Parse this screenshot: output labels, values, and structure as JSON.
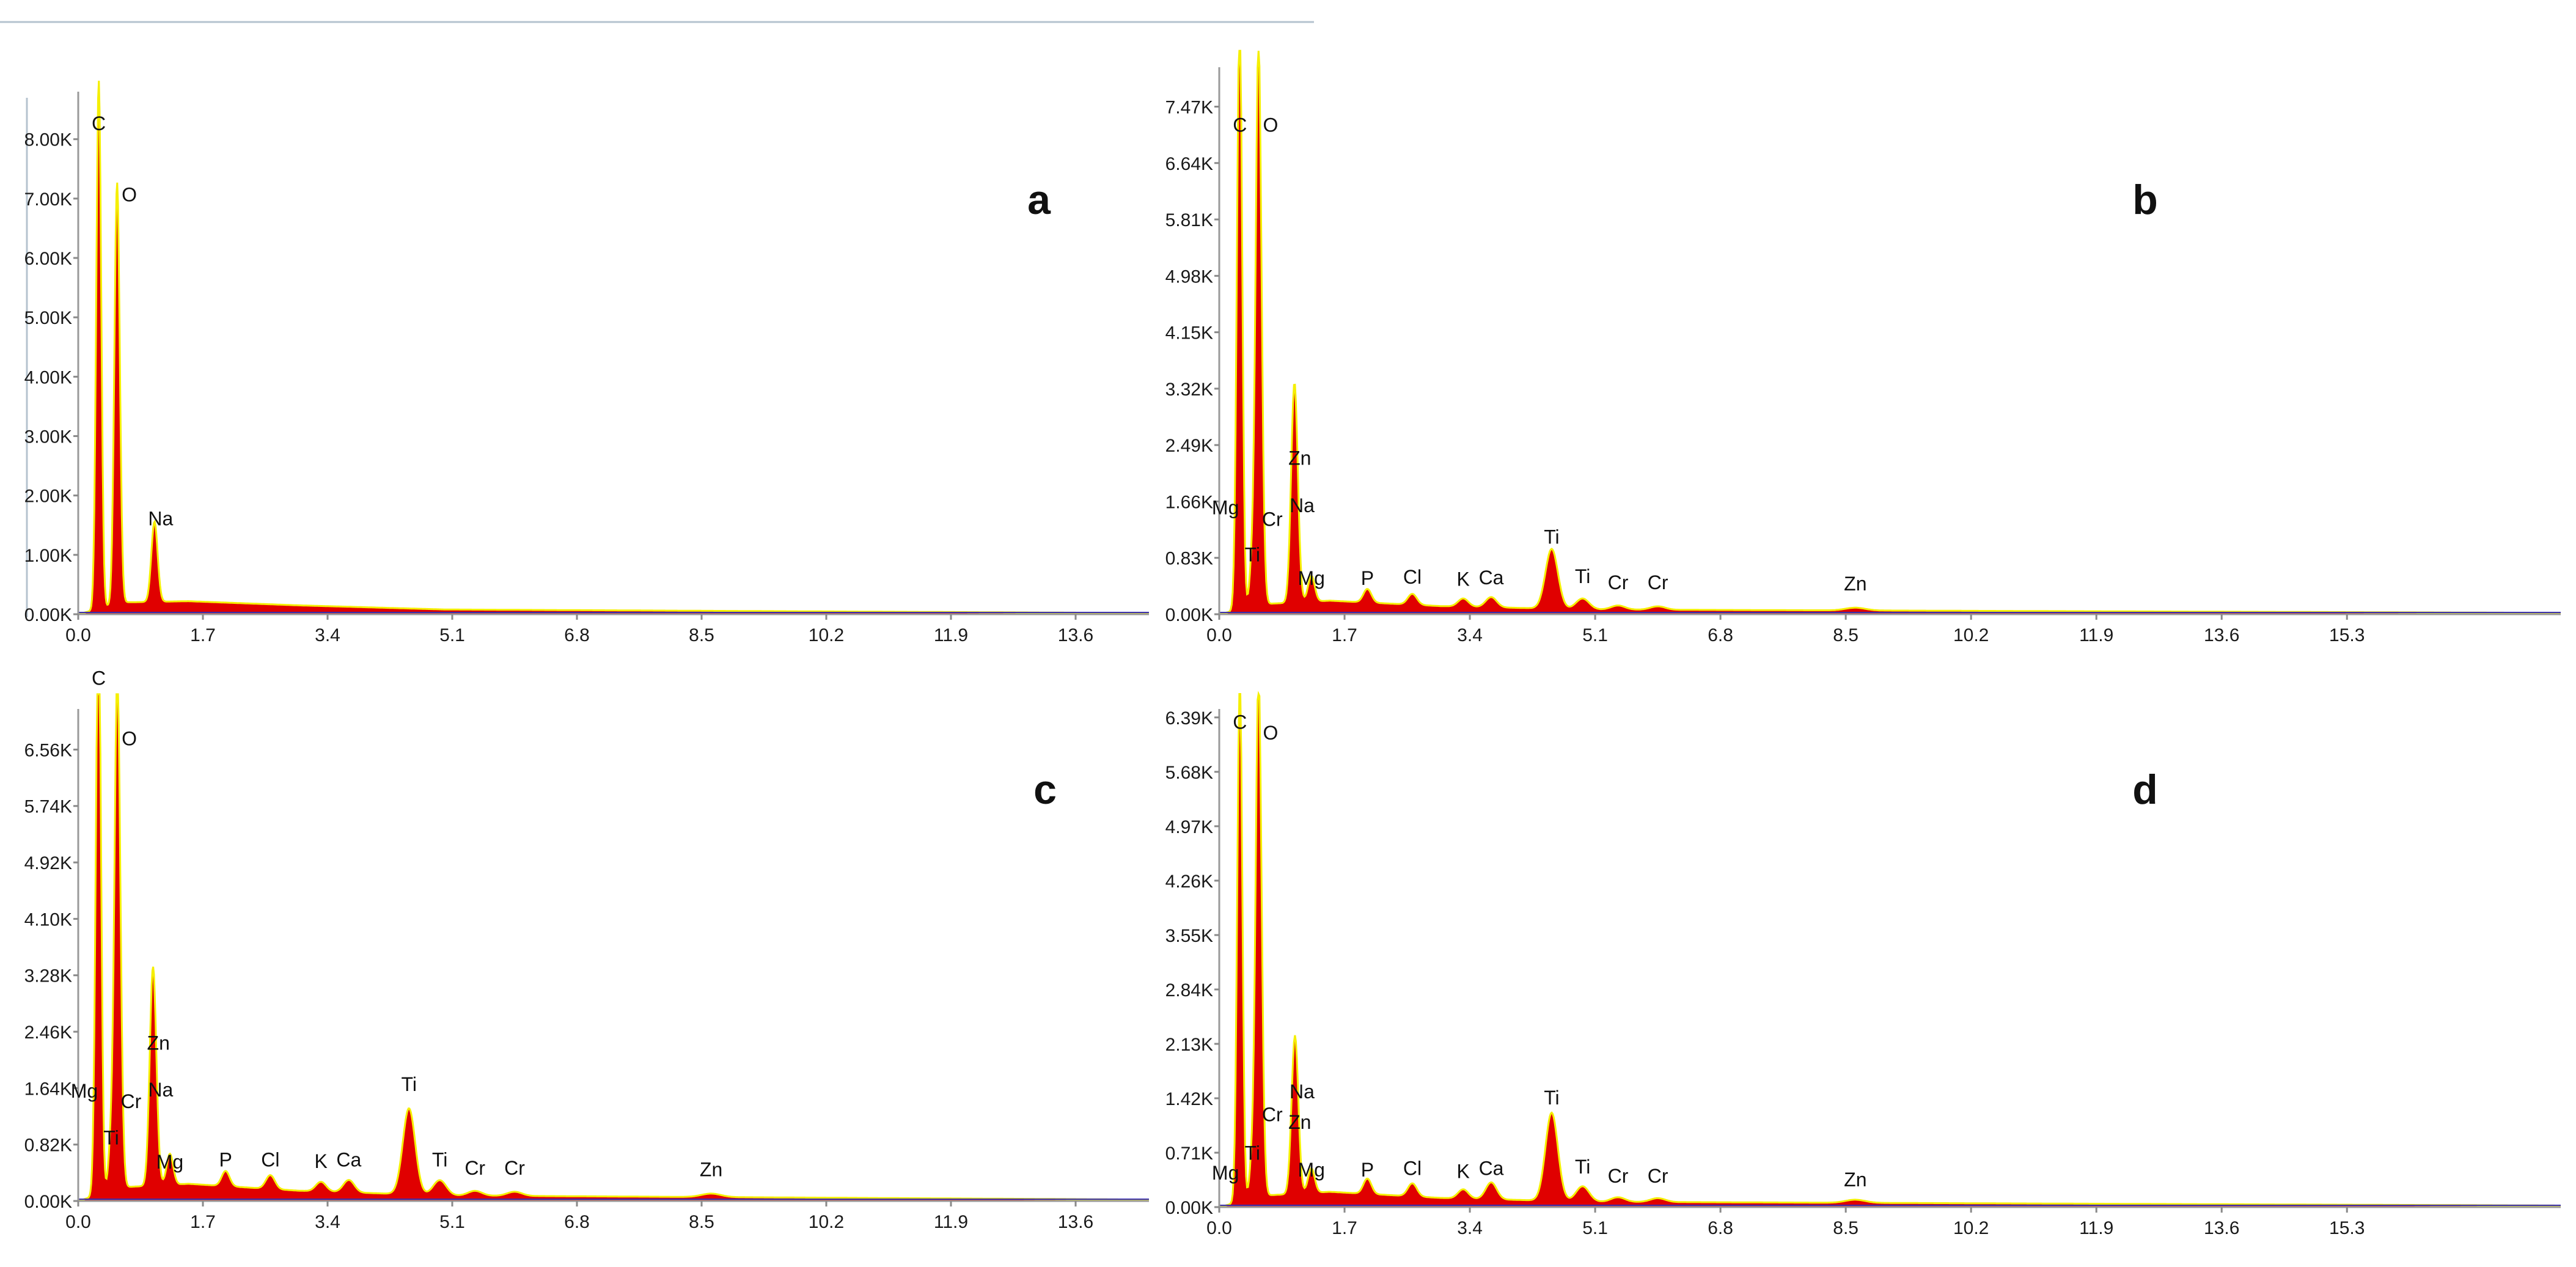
{
  "figure": {
    "background": "#ffffff",
    "spectrum_fill": "#e00000",
    "spectrum_outline": "#f5ef00",
    "baseline_color": "#3a2fb0"
  },
  "chart_data": [
    {
      "type": "area",
      "panel": "a",
      "xlabel": "",
      "ylabel": "",
      "xlim": [
        0,
        14.6
      ],
      "ylim": [
        0,
        8.8
      ],
      "x_ticks": [
        "0.0",
        "1.7",
        "3.4",
        "5.1",
        "6.8",
        "8.5",
        "10.2",
        "11.9",
        "13.6"
      ],
      "y_ticks": [
        "0.00K",
        "1.00K",
        "2.00K",
        "3.00K",
        "4.00K",
        "5.00K",
        "6.00K",
        "7.00K",
        "8.00K"
      ],
      "peaks": [
        {
          "element": "C",
          "energy": 0.28,
          "counts": 8.9,
          "label_counts": 8.15
        },
        {
          "element": "O",
          "energy": 0.53,
          "counts": 7.1,
          "label_counts": 6.95
        },
        {
          "element": "Na",
          "energy": 1.04,
          "counts": 1.35,
          "label_counts": 1.5
        }
      ],
      "background_level": [
        [
          0.6,
          0.2
        ],
        [
          1.5,
          0.22
        ],
        [
          3.0,
          0.15
        ],
        [
          5.0,
          0.08
        ],
        [
          14.6,
          0.02
        ]
      ]
    },
    {
      "type": "area",
      "panel": "b",
      "xlabel": "",
      "ylabel": "",
      "xlim": [
        0,
        18.2
      ],
      "ylim": [
        0,
        8.05
      ],
      "x_ticks": [
        "0.0",
        "1.7",
        "3.4",
        "5.1",
        "6.8",
        "8.5",
        "10.2",
        "11.9",
        "13.6",
        "15.3"
      ],
      "y_ticks": [
        "0.00K",
        "0.83K",
        "1.66K",
        "2.49K",
        "3.32K",
        "4.15K",
        "4.98K",
        "5.81K",
        "6.64K",
        "7.47K"
      ],
      "peaks": [
        {
          "element": "Mg",
          "energy": 0.25,
          "counts": 1.42,
          "label_counts": 1.47
        },
        {
          "element": "C",
          "energy": 0.28,
          "counts": 7.9,
          "label_counts": 7.1
        },
        {
          "element": "Ti",
          "energy": 0.45,
          "counts": 0.7,
          "label_counts": 0.78
        },
        {
          "element": "O",
          "energy": 0.53,
          "counts": 7.6,
          "label_counts": 7.1
        },
        {
          "element": "Cr",
          "energy": 0.57,
          "counts": 1.25,
          "label_counts": 1.3
        },
        {
          "element": "Zn",
          "energy": 1.01,
          "counts": 2.15,
          "label_counts": 2.2
        },
        {
          "element": "Na",
          "energy": 1.04,
          "counts": 1.28,
          "label_counts": 1.5
        },
        {
          "element": "Mg",
          "energy": 1.25,
          "counts": 0.38,
          "label_counts": 0.43
        },
        {
          "element": "P",
          "energy": 2.01,
          "counts": 0.2,
          "label_counts": 0.43
        },
        {
          "element": "Cl",
          "energy": 2.62,
          "counts": 0.16,
          "label_counts": 0.45
        },
        {
          "element": "K",
          "energy": 3.31,
          "counts": 0.12,
          "label_counts": 0.42
        },
        {
          "element": "Ca",
          "energy": 3.69,
          "counts": 0.15,
          "label_counts": 0.44
        },
        {
          "element": "Ti",
          "energy": 4.51,
          "counts": 0.88,
          "label_counts": 1.04
        },
        {
          "element": "Ti",
          "energy": 4.93,
          "counts": 0.16,
          "label_counts": 0.46
        },
        {
          "element": "Cr",
          "energy": 5.41,
          "counts": 0.06,
          "label_counts": 0.37
        },
        {
          "element": "Cr",
          "energy": 5.95,
          "counts": 0.05,
          "label_counts": 0.37
        },
        {
          "element": "Zn",
          "energy": 8.63,
          "counts": 0.04,
          "label_counts": 0.35
        }
      ],
      "background_level": [
        [
          0.6,
          0.15
        ],
        [
          1.5,
          0.2
        ],
        [
          3.0,
          0.12
        ],
        [
          5.0,
          0.07
        ],
        [
          18.2,
          0.02
        ]
      ]
    },
    {
      "type": "area",
      "panel": "c",
      "xlabel": "",
      "ylabel": "",
      "xlim": [
        0,
        14.6
      ],
      "ylim": [
        0,
        7.15
      ],
      "x_ticks": [
        "0.0",
        "1.7",
        "3.4",
        "5.1",
        "6.8",
        "8.5",
        "10.2",
        "11.9",
        "13.6"
      ],
      "y_ticks": [
        "0.00K",
        "0.82K",
        "1.64K",
        "2.46K",
        "3.28K",
        "4.10K",
        "4.92K",
        "5.74K",
        "6.56K"
      ],
      "peaks": [
        {
          "element": "Mg",
          "energy": 0.25,
          "counts": 1.45,
          "label_counts": 1.5
        },
        {
          "element": "C",
          "energy": 0.28,
          "counts": 7.5,
          "label_counts": 7.5
        },
        {
          "element": "Ti",
          "energy": 0.45,
          "counts": 0.75,
          "label_counts": 0.82
        },
        {
          "element": "O",
          "energy": 0.53,
          "counts": 6.75,
          "label_counts": 6.62
        },
        {
          "element": "Cr",
          "energy": 0.57,
          "counts": 1.3,
          "label_counts": 1.35
        },
        {
          "element": "Zn",
          "energy": 1.01,
          "counts": 2.15,
          "label_counts": 2.2
        },
        {
          "element": "Na",
          "energy": 1.04,
          "counts": 1.22,
          "label_counts": 1.52
        },
        {
          "element": "Mg",
          "energy": 1.25,
          "counts": 0.45,
          "label_counts": 0.47
        },
        {
          "element": "P",
          "energy": 2.01,
          "counts": 0.22,
          "label_counts": 0.5
        },
        {
          "element": "Cl",
          "energy": 2.62,
          "counts": 0.2,
          "label_counts": 0.5
        },
        {
          "element": "K",
          "energy": 3.31,
          "counts": 0.14,
          "label_counts": 0.48
        },
        {
          "element": "Ca",
          "energy": 3.69,
          "counts": 0.18,
          "label_counts": 0.5
        },
        {
          "element": "Ti",
          "energy": 4.51,
          "counts": 1.25,
          "label_counts": 1.6
        },
        {
          "element": "Ti",
          "energy": 4.93,
          "counts": 0.22,
          "label_counts": 0.5
        },
        {
          "element": "Cr",
          "energy": 5.41,
          "counts": 0.07,
          "label_counts": 0.38
        },
        {
          "element": "Cr",
          "energy": 5.95,
          "counts": 0.06,
          "label_counts": 0.38
        },
        {
          "element": "Zn",
          "energy": 8.63,
          "counts": 0.05,
          "label_counts": 0.36
        }
      ],
      "background_level": [
        [
          0.6,
          0.2
        ],
        [
          1.5,
          0.25
        ],
        [
          3.0,
          0.15
        ],
        [
          5.0,
          0.08
        ],
        [
          14.6,
          0.02
        ]
      ]
    },
    {
      "type": "area",
      "panel": "d",
      "xlabel": "",
      "ylabel": "",
      "xlim": [
        0,
        18.2
      ],
      "ylim": [
        0,
        6.5
      ],
      "x_ticks": [
        "0.0",
        "1.7",
        "3.4",
        "5.1",
        "6.8",
        "8.5",
        "10.2",
        "11.9",
        "13.6",
        "15.3"
      ],
      "y_ticks": [
        "0.00K",
        "0.71K",
        "1.42K",
        "2.13K",
        "2.84K",
        "3.55K",
        "4.26K",
        "4.97K",
        "5.68K",
        "6.39K"
      ],
      "peaks": [
        {
          "element": "Mg",
          "energy": 0.25,
          "counts": 0.3,
          "label_counts": 0.36
        },
        {
          "element": "C",
          "energy": 0.28,
          "counts": 6.7,
          "label_counts": 6.24
        },
        {
          "element": "Ti",
          "energy": 0.45,
          "counts": 0.55,
          "label_counts": 0.62
        },
        {
          "element": "O",
          "energy": 0.53,
          "counts": 6.2,
          "label_counts": 6.1
        },
        {
          "element": "Cr",
          "energy": 0.57,
          "counts": 1.1,
          "label_counts": 1.12
        },
        {
          "element": "Na",
          "energy": 1.04,
          "counts": 1.25,
          "label_counts": 1.42
        },
        {
          "element": "Zn",
          "energy": 1.01,
          "counts": 0.95,
          "label_counts": 1.02
        },
        {
          "element": "Mg",
          "energy": 1.25,
          "counts": 0.32,
          "label_counts": 0.4
        },
        {
          "element": "P",
          "energy": 2.01,
          "counts": 0.2,
          "label_counts": 0.4
        },
        {
          "element": "Cl",
          "energy": 2.62,
          "counts": 0.17,
          "label_counts": 0.42
        },
        {
          "element": "K",
          "energy": 3.31,
          "counts": 0.12,
          "label_counts": 0.38
        },
        {
          "element": "Ca",
          "energy": 3.69,
          "counts": 0.22,
          "label_counts": 0.42
        },
        {
          "element": "Ti",
          "energy": 4.51,
          "counts": 1.15,
          "label_counts": 1.34
        },
        {
          "element": "Ti",
          "energy": 4.93,
          "counts": 0.2,
          "label_counts": 0.44
        },
        {
          "element": "Cr",
          "energy": 5.41,
          "counts": 0.06,
          "label_counts": 0.32
        },
        {
          "element": "Cr",
          "energy": 5.95,
          "counts": 0.05,
          "label_counts": 0.32
        },
        {
          "element": "Zn",
          "energy": 8.63,
          "counts": 0.04,
          "label_counts": 0.27
        }
      ],
      "background_level": [
        [
          0.6,
          0.15
        ],
        [
          1.5,
          0.2
        ],
        [
          3.0,
          0.12
        ],
        [
          5.0,
          0.07
        ],
        [
          18.2,
          0.02
        ]
      ]
    }
  ]
}
